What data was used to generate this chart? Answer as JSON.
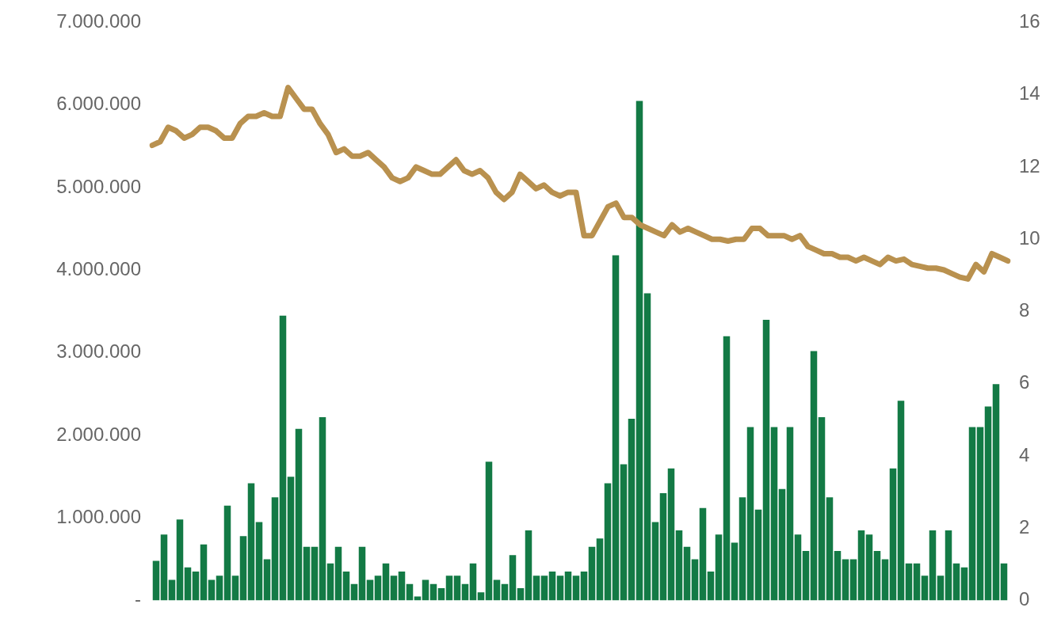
{
  "chart_data": [
    {
      "type": "bar",
      "tick_labels": "y",
      "categories": [
        null,
        null,
        null,
        null,
        null,
        null,
        null,
        null,
        null,
        null,
        null,
        null,
        null,
        null,
        null,
        null,
        null,
        null,
        null,
        null,
        null,
        null,
        null,
        null,
        null,
        null,
        null,
        null,
        null,
        null,
        null,
        null,
        null,
        null,
        null,
        null,
        null,
        null,
        null,
        null,
        null,
        null,
        null,
        null,
        null,
        null,
        null,
        null,
        null,
        null,
        null,
        null,
        null,
        null,
        null,
        null,
        null,
        null,
        null,
        null,
        null,
        null,
        null,
        null,
        null,
        null,
        null,
        null,
        null,
        null,
        null,
        null,
        null,
        null,
        null,
        null,
        null,
        null,
        null,
        null,
        null,
        null,
        null,
        null,
        null,
        null,
        null,
        null,
        null,
        null,
        null,
        null,
        null,
        null,
        null,
        null,
        null,
        null,
        null,
        null,
        null,
        null,
        null,
        null,
        null,
        null,
        null,
        null
      ],
      "series": [
        {
          "color": "#137a45",
          "values": [
            480000,
            800000,
            250000,
            980000,
            400000,
            350000,
            680000,
            250000,
            300000,
            1150000,
            300000,
            780000,
            1420000,
            950000,
            500000,
            1250000,
            3450000,
            1500000,
            2080000,
            650000,
            650000,
            2220000,
            450000,
            650000,
            350000,
            200000,
            650000,
            250000,
            300000,
            450000,
            300000,
            350000,
            200000,
            50000,
            250000,
            200000,
            150000,
            300000,
            300000,
            200000,
            450000,
            100000,
            1680000,
            250000,
            200000,
            550000,
            150000,
            850000,
            300000,
            300000,
            350000,
            300000,
            350000,
            300000,
            350000,
            650000,
            750000,
            1420000,
            4180000,
            1650000,
            2200000,
            6050000,
            3720000,
            950000,
            1300000,
            1600000,
            850000,
            650000,
            500000,
            1120000,
            350000,
            800000,
            3200000,
            700000,
            1250000,
            2100000,
            1100000,
            3400000,
            2100000,
            1350000,
            2100000,
            800000,
            600000,
            3020000,
            2220000,
            1250000,
            600000,
            500000,
            500000,
            850000,
            800000,
            600000,
            500000,
            1600000,
            2420000,
            450000,
            450000,
            300000,
            850000,
            300000,
            850000,
            450000,
            400000,
            2100000,
            2100000,
            2350000,
            2620000,
            450000
          ]
        }
      ],
      "ylim": [
        0,
        7000000
      ],
      "yticks": [
        {
          "value": 0,
          "label": "-"
        },
        {
          "value": 1000000,
          "label": "1.000.000"
        },
        {
          "value": 2000000,
          "label": "2.000.000"
        },
        {
          "value": 3000000,
          "label": "3.000.000"
        },
        {
          "value": 4000000,
          "label": "4.000.000"
        },
        {
          "value": 5000000,
          "label": "5.000.000"
        },
        {
          "value": 6000000,
          "label": "6.000.000"
        },
        {
          "value": 7000000,
          "label": "7.000.000"
        }
      ]
    },
    {
      "type": "line",
      "tick_labels": "y",
      "categories": [
        null,
        null,
        null,
        null,
        null,
        null,
        null,
        null,
        null,
        null,
        null,
        null,
        null,
        null,
        null,
        null,
        null,
        null,
        null,
        null,
        null,
        null,
        null,
        null,
        null,
        null,
        null,
        null,
        null,
        null,
        null,
        null,
        null,
        null,
        null,
        null,
        null,
        null,
        null,
        null,
        null,
        null,
        null,
        null,
        null,
        null,
        null,
        null,
        null,
        null,
        null,
        null,
        null,
        null,
        null,
        null,
        null,
        null,
        null,
        null,
        null,
        null,
        null,
        null,
        null,
        null,
        null,
        null,
        null,
        null,
        null,
        null,
        null,
        null,
        null,
        null,
        null,
        null,
        null,
        null,
        null,
        null,
        null,
        null,
        null,
        null,
        null,
        null,
        null,
        null,
        null,
        null,
        null,
        null,
        null,
        null,
        null,
        null,
        null,
        null,
        null,
        null,
        null,
        null,
        null,
        null,
        null,
        null
      ],
      "series": [
        {
          "color": "#b9914f",
          "values": [
            12.6,
            12.7,
            13.1,
            13.0,
            12.8,
            12.9,
            13.1,
            13.1,
            13.0,
            12.8,
            12.8,
            13.2,
            13.4,
            13.4,
            13.5,
            13.4,
            13.4,
            14.2,
            13.9,
            13.6,
            13.6,
            13.2,
            12.9,
            12.4,
            12.5,
            12.3,
            12.3,
            12.4,
            12.2,
            12.0,
            11.7,
            11.6,
            11.7,
            12.0,
            11.9,
            11.8,
            11.8,
            12.0,
            12.2,
            11.9,
            11.8,
            11.9,
            11.7,
            11.3,
            11.1,
            11.3,
            11.8,
            11.6,
            11.4,
            11.5,
            11.3,
            11.2,
            11.3,
            11.3,
            10.1,
            10.1,
            10.5,
            10.9,
            11.0,
            10.6,
            10.6,
            10.4,
            10.3,
            10.2,
            10.1,
            10.4,
            10.2,
            10.3,
            10.2,
            10.1,
            10.0,
            10.0,
            9.95,
            10.0,
            10.0,
            10.3,
            10.3,
            10.1,
            10.1,
            10.1,
            10.0,
            10.1,
            9.8,
            9.7,
            9.6,
            9.6,
            9.5,
            9.5,
            9.4,
            9.5,
            9.4,
            9.3,
            9.5,
            9.4,
            9.45,
            9.3,
            9.25,
            9.2,
            9.2,
            9.15,
            9.05,
            8.95,
            8.9,
            9.3,
            9.1,
            9.6,
            9.5,
            9.4
          ]
        }
      ],
      "ylim": [
        0,
        16
      ],
      "yticks": [
        0,
        2,
        4,
        6,
        8,
        10,
        12,
        14,
        16
      ]
    }
  ]
}
